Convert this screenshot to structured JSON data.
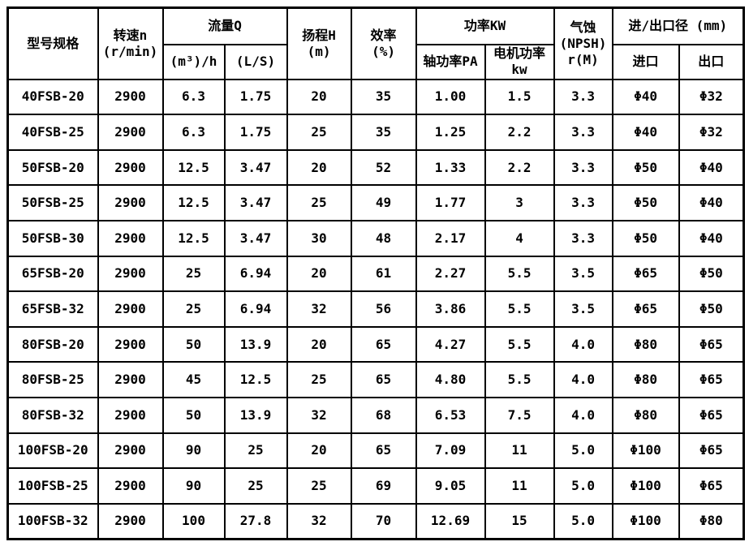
{
  "table": {
    "header": {
      "model": "型号规格",
      "speed_line1": "转速n",
      "speed_line2": "(r/min)",
      "flow_group": "流量Q",
      "flow_m3h": "(m³)/h",
      "flow_ls": "(L/S)",
      "head_line1": "扬程H",
      "head_line2": "(m)",
      "efficiency_line1": "效率",
      "efficiency_line2": "(%)",
      "power_group": "功率KW",
      "shaft_power": "轴功率PA",
      "motor_power_line1": "电机功率",
      "motor_power_line2": "kw",
      "npsh_line1": "气蚀",
      "npsh_line2": "(NPSH)",
      "npsh_line3": "r(M)",
      "inlet_outlet_group": "进/出口径 (mm)",
      "inlet": "进口",
      "outlet": "出口"
    },
    "column_keys": [
      "model",
      "speed",
      "flow-m3h",
      "flow-ls",
      "head",
      "efficiency",
      "shaft-power",
      "motor-power",
      "npsh",
      "inlet",
      "outlet"
    ],
    "rows": [
      [
        "40FSB-20",
        "2900",
        "6.3",
        "1.75",
        "20",
        "35",
        "1.00",
        "1.5",
        "3.3",
        "Φ40",
        "Φ32"
      ],
      [
        "40FSB-25",
        "2900",
        "6.3",
        "1.75",
        "25",
        "35",
        "1.25",
        "2.2",
        "3.3",
        "Φ40",
        "Φ32"
      ],
      [
        "50FSB-20",
        "2900",
        "12.5",
        "3.47",
        "20",
        "52",
        "1.33",
        "2.2",
        "3.3",
        "Φ50",
        "Φ40"
      ],
      [
        "50FSB-25",
        "2900",
        "12.5",
        "3.47",
        "25",
        "49",
        "1.77",
        "3",
        "3.3",
        "Φ50",
        "Φ40"
      ],
      [
        "50FSB-30",
        "2900",
        "12.5",
        "3.47",
        "30",
        "48",
        "2.17",
        "4",
        "3.3",
        "Φ50",
        "Φ40"
      ],
      [
        "65FSB-20",
        "2900",
        "25",
        "6.94",
        "20",
        "61",
        "2.27",
        "5.5",
        "3.5",
        "Φ65",
        "Φ50"
      ],
      [
        "65FSB-32",
        "2900",
        "25",
        "6.94",
        "32",
        "56",
        "3.86",
        "5.5",
        "3.5",
        "Φ65",
        "Φ50"
      ],
      [
        "80FSB-20",
        "2900",
        "50",
        "13.9",
        "20",
        "65",
        "4.27",
        "5.5",
        "4.0",
        "Φ80",
        "Φ65"
      ],
      [
        "80FSB-25",
        "2900",
        "45",
        "12.5",
        "25",
        "65",
        "4.80",
        "5.5",
        "4.0",
        "Φ80",
        "Φ65"
      ],
      [
        "80FSB-32",
        "2900",
        "50",
        "13.9",
        "32",
        "68",
        "6.53",
        "7.5",
        "4.0",
        "Φ80",
        "Φ65"
      ],
      [
        "100FSB-20",
        "2900",
        "90",
        "25",
        "20",
        "65",
        "7.09",
        "11",
        "5.0",
        "Φ100",
        "Φ65"
      ],
      [
        "100FSB-25",
        "2900",
        "90",
        "25",
        "25",
        "69",
        "9.05",
        "11",
        "5.0",
        "Φ100",
        "Φ65"
      ],
      [
        "100FSB-32",
        "2900",
        "100",
        "27.8",
        "32",
        "70",
        "12.69",
        "15",
        "5.0",
        "Φ100",
        "Φ80"
      ]
    ]
  }
}
